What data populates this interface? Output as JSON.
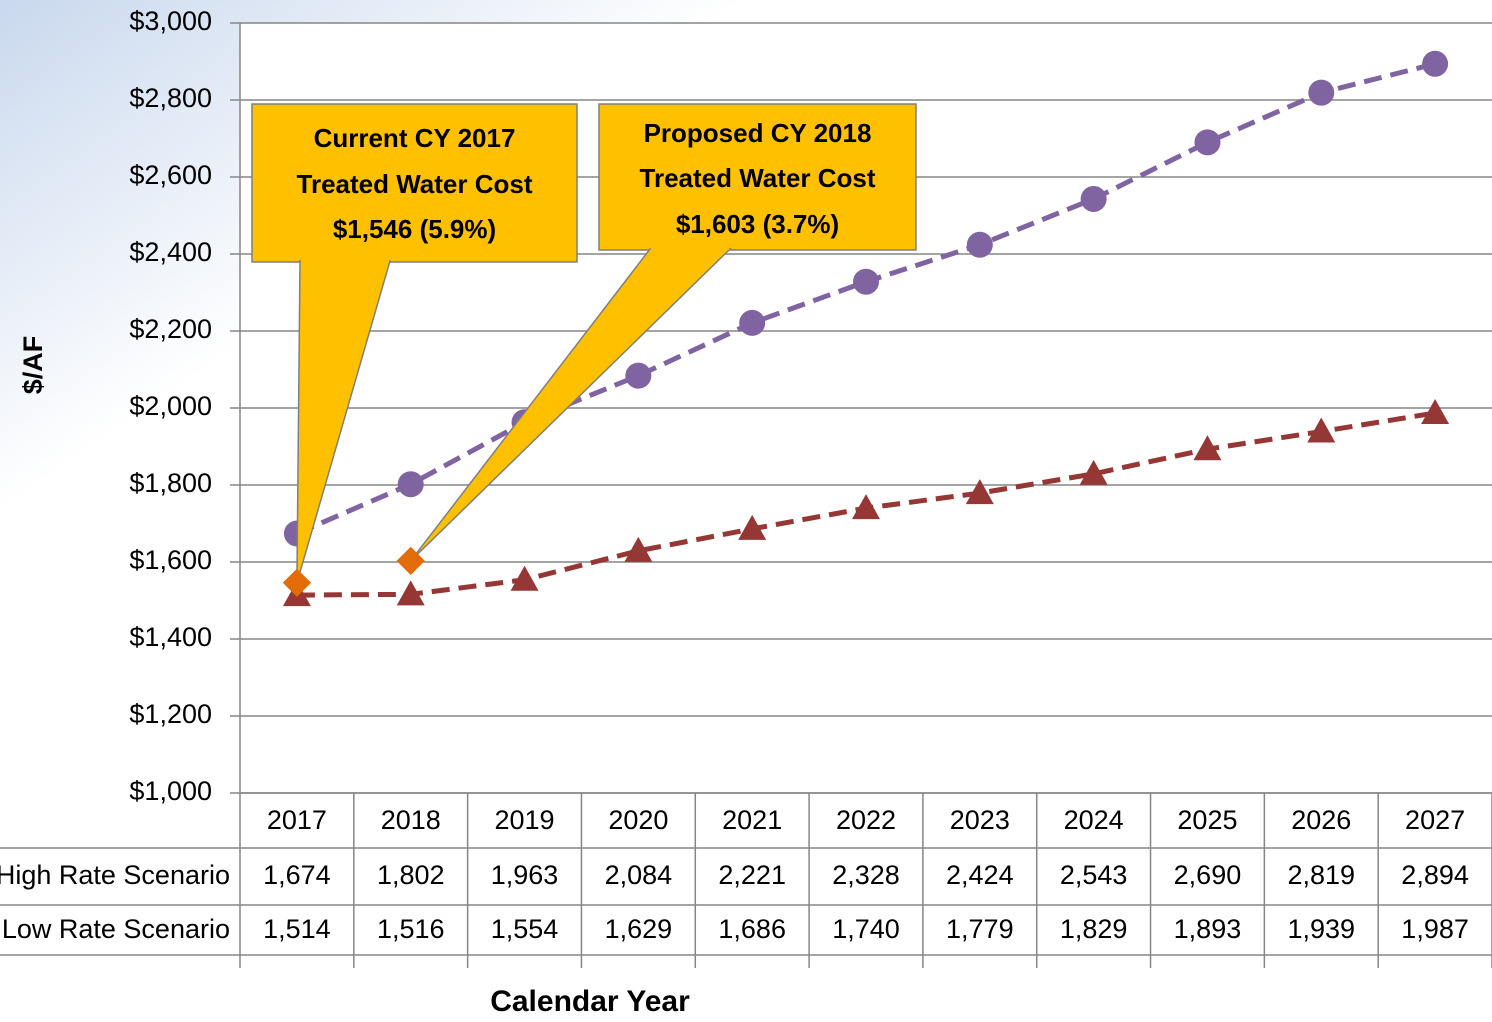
{
  "chart_data": {
    "type": "line",
    "x_label": "Calendar Year",
    "y_label": "$/AF",
    "categories": [
      "2017",
      "2018",
      "2019",
      "2020",
      "2021",
      "2022",
      "2023",
      "2024",
      "2025",
      "2026",
      "2027"
    ],
    "series": [
      {
        "name": "High Rate Scenario",
        "color": "#8064a2",
        "marker": "circle",
        "values": [
          1674,
          1802,
          1963,
          2084,
          2221,
          2328,
          2424,
          2543,
          2690,
          2819,
          2894
        ],
        "value_labels": [
          "1,674",
          "1,802",
          "1,963",
          "2,084",
          "2,221",
          "2,328",
          "2,424",
          "2,543",
          "2,690",
          "2,819",
          "2,894"
        ]
      },
      {
        "name": "Low Rate Scenario",
        "color": "#953735",
        "marker": "triangle",
        "values": [
          1514,
          1516,
          1554,
          1629,
          1686,
          1740,
          1779,
          1829,
          1893,
          1939,
          1987
        ],
        "value_labels": [
          "1,514",
          "1,516",
          "1,554",
          "1,629",
          "1,686",
          "1,740",
          "1,779",
          "1,829",
          "1,893",
          "1,939",
          "1,987"
        ]
      }
    ],
    "callouts": [
      {
        "category": "2017",
        "value": 1546,
        "color": "#e36c09",
        "lines": [
          "Current CY 2017",
          "Treated Water Cost",
          "$1,546 (5.9%)"
        ]
      },
      {
        "category": "2018",
        "value": 1603,
        "color": "#e36c09",
        "lines": [
          "Proposed CY 2018",
          "Treated Water Cost",
          "$1,603 (3.7%)"
        ]
      }
    ],
    "ylim": [
      1000,
      3000
    ],
    "yticks": [
      {
        "value": 1000,
        "label": "$1,000"
      },
      {
        "value": 1200,
        "label": "$1,200"
      },
      {
        "value": 1400,
        "label": "$1,400"
      },
      {
        "value": 1600,
        "label": "$1,600"
      },
      {
        "value": 1800,
        "label": "$1,800"
      },
      {
        "value": 2000,
        "label": "$2,000"
      },
      {
        "value": 2200,
        "label": "$2,200"
      },
      {
        "value": 2400,
        "label": "$2,400"
      },
      {
        "value": 2600,
        "label": "$2,600"
      },
      {
        "value": 2800,
        "label": "$2,800"
      },
      {
        "value": 3000,
        "label": "$3,000"
      }
    ],
    "grid": true
  }
}
